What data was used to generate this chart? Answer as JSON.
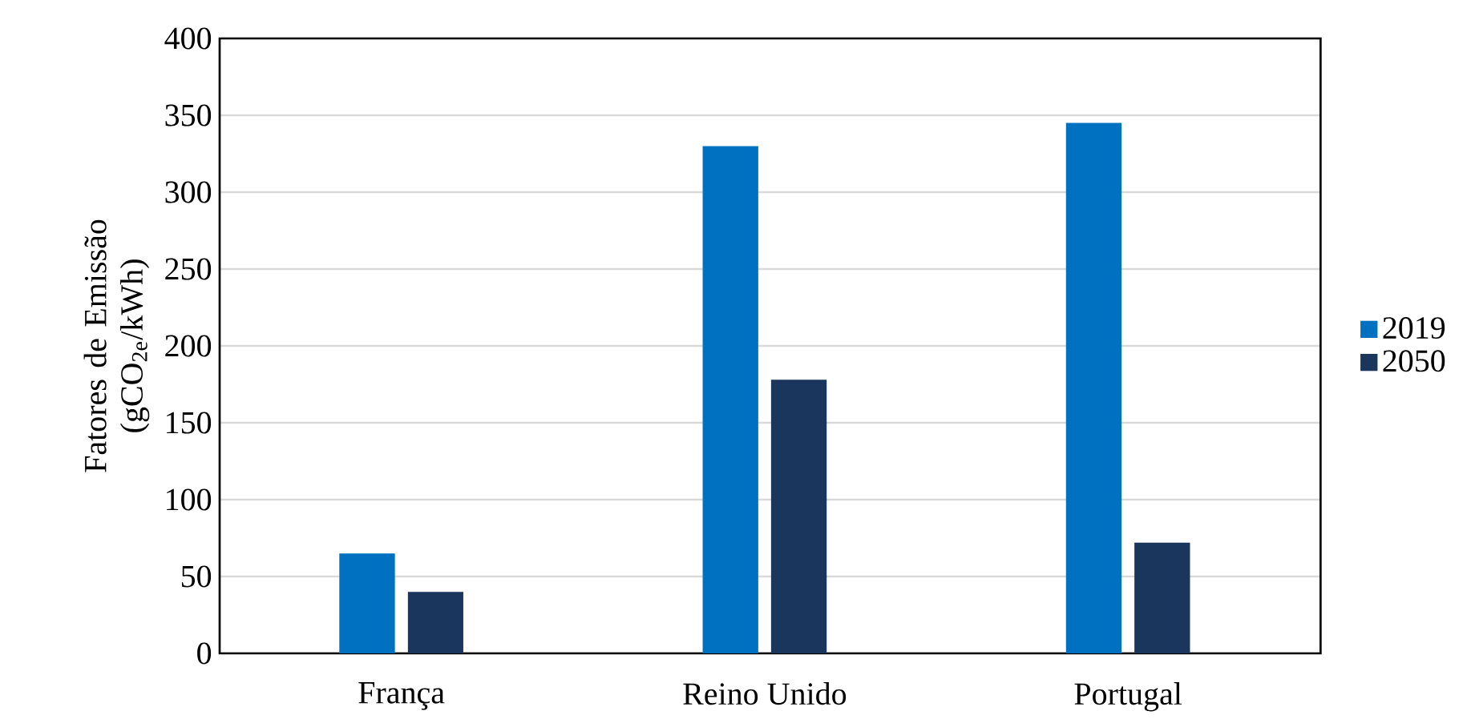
{
  "chart_data": {
    "type": "bar",
    "ylabel": "Fatores de Emissão (gCO$_{2e}$/kWh)",
    "categories": [
      "França",
      "Reino Unido",
      "Portugal"
    ],
    "series": [
      {
        "name": "2019",
        "color": "#0070c0",
        "values": [
          65,
          330,
          345
        ]
      },
      {
        "name": "2050",
        "color": "#1b365d",
        "values": [
          40,
          178,
          72
        ]
      }
    ],
    "ylim": [
      0,
      400
    ],
    "yticks": [
      0,
      50,
      100,
      150,
      200,
      250,
      300,
      350,
      400
    ],
    "grid": "y",
    "legend": "right"
  }
}
